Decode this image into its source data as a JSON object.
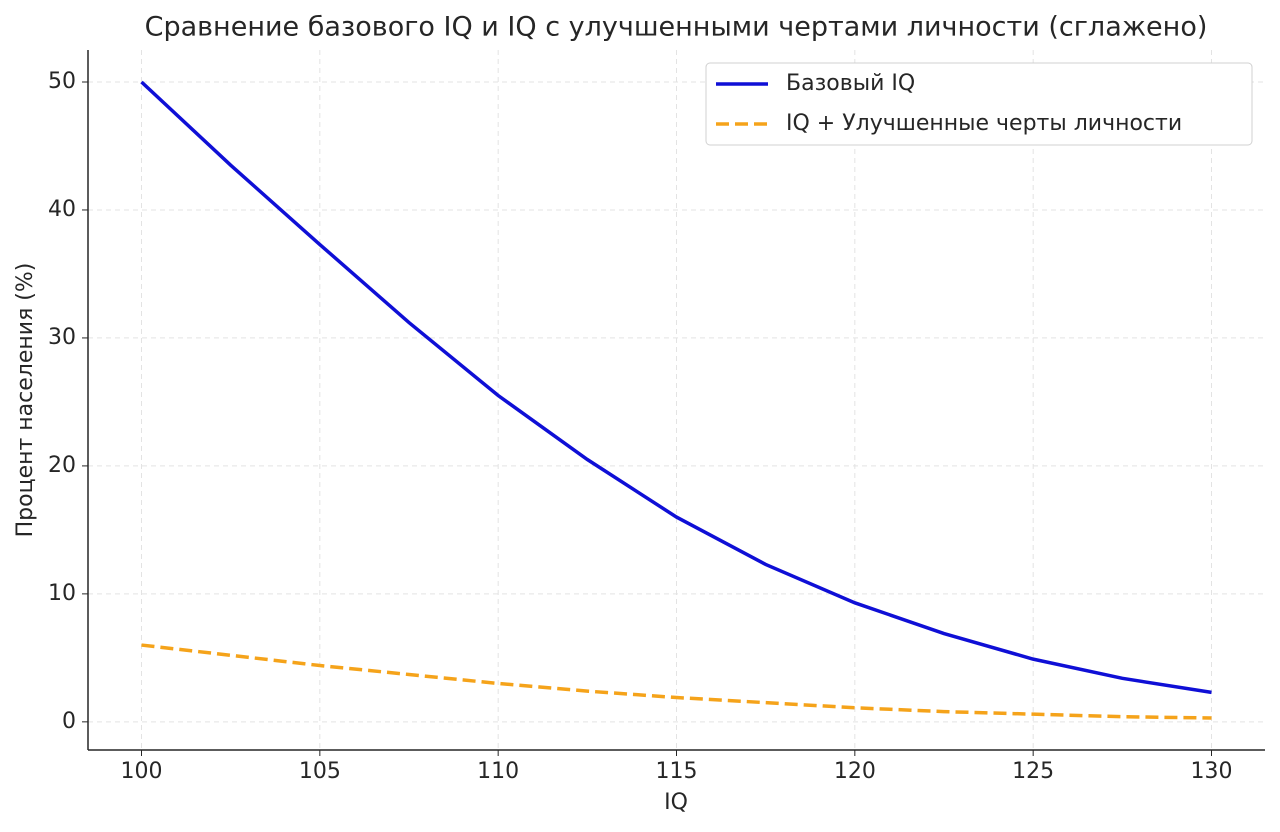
{
  "chart_data": {
    "type": "line",
    "title": "Сравнение базового IQ и IQ с улучшенными чертами личности (сглажено)",
    "x_label": "IQ",
    "y_label": "Процент населения (%)",
    "x": [
      100,
      102.5,
      105,
      107.5,
      110,
      112.5,
      115,
      117.5,
      120,
      122.5,
      125,
      127.5,
      130
    ],
    "series": [
      {
        "name": "Базовый IQ",
        "color": "#0f0fd6",
        "dash": "solid",
        "values": [
          50,
          43.5,
          37.3,
          31.2,
          25.5,
          20.5,
          16.0,
          12.3,
          9.3,
          6.9,
          4.9,
          3.4,
          2.3
        ]
      },
      {
        "name": "IQ + Улучшенные черты личности",
        "color": "#f5a31a",
        "dash": "dashed",
        "values": [
          6,
          5.2,
          4.4,
          3.7,
          3.0,
          2.4,
          1.9,
          1.5,
          1.1,
          0.8,
          0.6,
          0.4,
          0.3
        ]
      }
    ],
    "xlim": [
      98.5,
      131.5
    ],
    "xticks": [
      100,
      105,
      110,
      115,
      120,
      125,
      130
    ],
    "ylim": [
      -2.2,
      52.5
    ],
    "yticks": [
      0,
      10,
      20,
      30,
      40,
      50
    ],
    "grid": true,
    "legend": "upper-right"
  }
}
